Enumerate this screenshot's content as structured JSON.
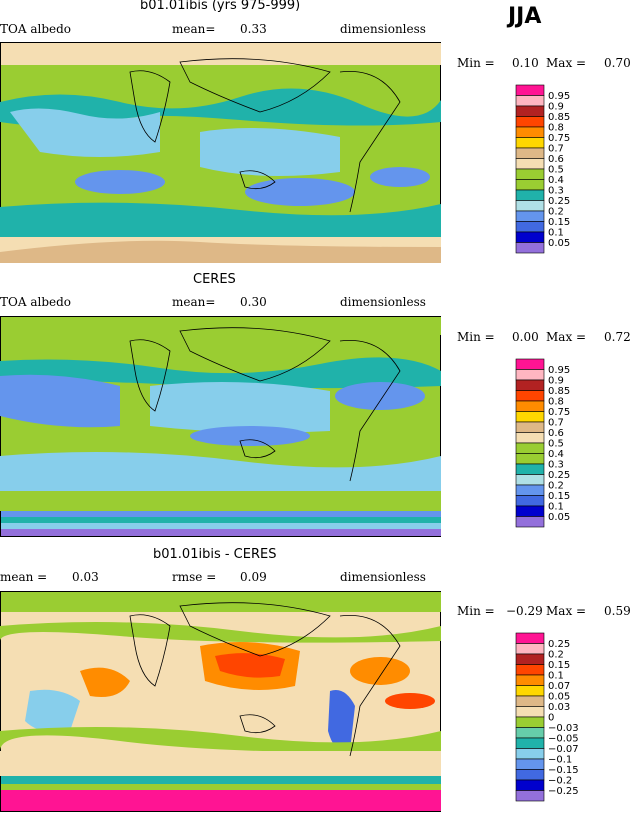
{
  "season": "JJA",
  "colors": {
    "albedo": [
      "#9370db",
      "#0000cd",
      "#4169e1",
      "#6495ed",
      "#87ceeb",
      "#b0e0e6",
      "#20b2aa",
      "#9acd32",
      "#9acd32",
      "#f5deb3",
      "#deb887",
      "#ffd700",
      "#ffa500",
      "#ff8c00",
      "#ff4500",
      "#b22222",
      "#ffb6c1",
      "#ff1493"
    ],
    "diff": [
      "#9370db",
      "#0000cd",
      "#4169e1",
      "#6495ed",
      "#87ceeb",
      "#20b2aa",
      "#66cdaa",
      "#9acd32",
      "#f5deb3",
      "#deb887",
      "#ffd700",
      "#ffa500",
      "#ff8c00",
      "#ff4500",
      "#b22222",
      "#ffb6c1",
      "#ff1493"
    ]
  },
  "chart_data": [
    {
      "type": "heatmap",
      "title": "b01.01ibis (yrs 975-999)",
      "left_label": "TOA albedo",
      "mean_label": "mean=",
      "mean_value": "0.33",
      "units": "dimensionless",
      "min_label": "Min =",
      "min_value": "0.10",
      "max_label": "Max =",
      "max_value": "0.70",
      "legend_levels": [
        "0.95",
        "0.9",
        "0.85",
        "0.8",
        "0.75",
        "0.7",
        "0.6",
        "0.5",
        "0.4",
        "0.3",
        "0.25",
        "0.2",
        "0.15",
        "0.1",
        "0.05"
      ]
    },
    {
      "type": "heatmap",
      "title": "CERES",
      "left_label": "TOA albedo",
      "mean_label": "mean=",
      "mean_value": "0.30",
      "units": "dimensionless",
      "min_label": "Min =",
      "min_value": "0.00",
      "max_label": "Max =",
      "max_value": "0.72",
      "legend_levels": [
        "0.95",
        "0.9",
        "0.85",
        "0.8",
        "0.75",
        "0.7",
        "0.6",
        "0.5",
        "0.4",
        "0.3",
        "0.25",
        "0.2",
        "0.15",
        "0.1",
        "0.05"
      ]
    },
    {
      "type": "heatmap",
      "title": "b01.01ibis - CERES",
      "mean_label": "mean =",
      "mean_value": "0.03",
      "rmse_label": "rmse =",
      "rmse_value": "0.09",
      "units": "dimensionless",
      "min_label": "Min =",
      "min_value": "−0.29",
      "max_label": "Max =",
      "max_value": "0.59",
      "legend_levels": [
        "0.25",
        "0.2",
        "0.15",
        "0.1",
        "0.07",
        "0.05",
        "0.03",
        "0",
        "−0.03",
        "−0.05",
        "−0.07",
        "−0.1",
        "−0.15",
        "−0.2",
        "−0.25"
      ]
    }
  ]
}
